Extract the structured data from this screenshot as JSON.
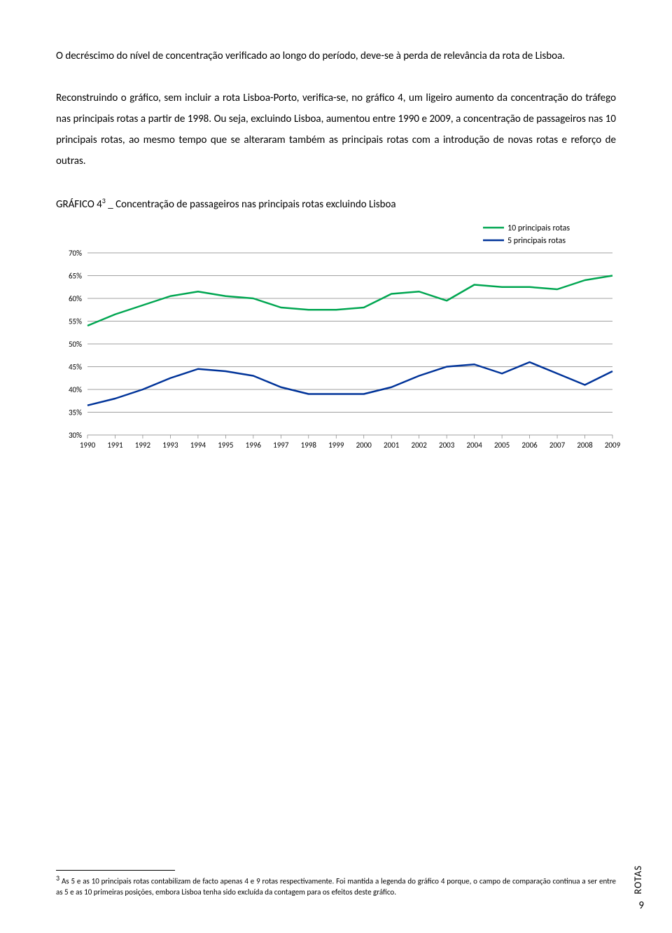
{
  "paragraphs": {
    "p1": "O decréscimo do nível de concentração verificado ao longo do período, deve-se à perda de relevância da rota de Lisboa.",
    "p2": "Reconstruindo o gráfico, sem incluir a rota Lisboa-Porto, verifica-se, no gráfico 4, um ligeiro aumento da concentração do tráfego nas principais rotas a partir de 1998. Ou seja, excluindo Lisboa, aumentou entre 1990 e 2009, a concentração de passageiros nas 10 principais rotas, ao mesmo tempo que se alteraram também as principais rotas com a introdução de novas rotas e reforço de outras."
  },
  "chart": {
    "title_prefix": "GRÁFICO 4",
    "title_sup": "3",
    "title_suffix": " _ Concentração de passageiros nas principais rotas excluindo Lisboa",
    "type": "line",
    "years": [
      "1990",
      "1991",
      "1992",
      "1993",
      "1994",
      "1995",
      "1996",
      "1997",
      "1998",
      "1999",
      "2000",
      "2001",
      "2002",
      "2003",
      "2004",
      "2005",
      "2006",
      "2007",
      "2008",
      "2009"
    ],
    "y_ticks": [
      "30%",
      "35%",
      "40%",
      "45%",
      "50%",
      "55%",
      "60%",
      "65%",
      "70%"
    ],
    "ylim": [
      30,
      70
    ],
    "series": [
      {
        "name": "10 principais rotas",
        "color": "#00a651",
        "stroke_width": 2.5,
        "values": [
          54,
          56.5,
          58.5,
          60.5,
          61.5,
          60.5,
          60,
          58,
          57.5,
          57.5,
          58,
          61,
          61.5,
          59.5,
          63,
          62.5,
          62.5,
          62,
          64,
          65
        ]
      },
      {
        "name": "5 principais rotas",
        "color": "#003399",
        "stroke_width": 2.5,
        "values": [
          36.5,
          38,
          40,
          42.5,
          44.5,
          44,
          43,
          40.5,
          39,
          39,
          39,
          40.5,
          43,
          45,
          45.5,
          43.5,
          46,
          43.5,
          41,
          44
        ]
      }
    ],
    "grid_color": "#808080",
    "axis_color": "#808080",
    "tick_font_size": 11,
    "legend_font_size": 12,
    "background": "#ffffff"
  },
  "footnote": {
    "sup": "3",
    "text": "As 5 e as 10 principais rotas contabilizam de facto apenas 4 e 9 rotas respectivamente. Foi mantida a legenda do gráfico 4 porque, o campo de comparação continua a ser entre as 5 e as 10 primeiras posições, embora Lisboa tenha sido excluída da contagem para os efeitos deste gráfico."
  },
  "side_label": "ROTAS",
  "page_number": "9"
}
